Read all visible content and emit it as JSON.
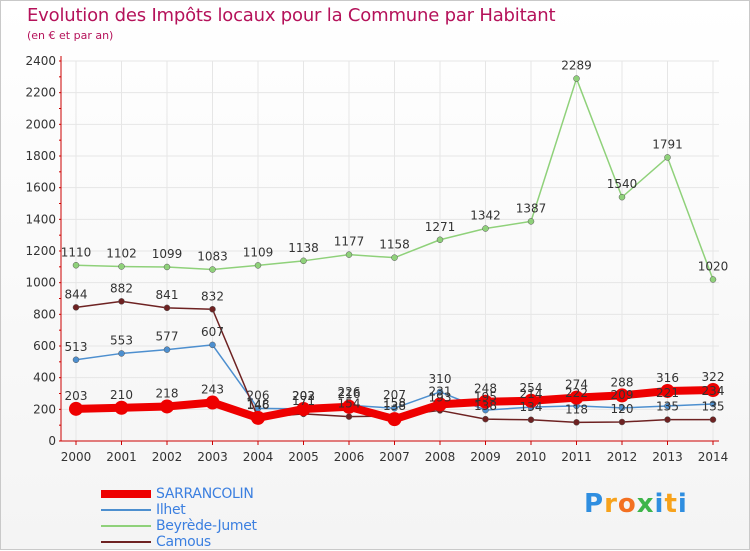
{
  "header": {
    "title": "Evolution des Impôts locaux pour la Commune par Habitant",
    "subtitle": "(en € et par an)"
  },
  "logo": {
    "text": "Proxiti",
    "letters": [
      "P",
      "r",
      "o",
      "x",
      "i",
      "t",
      "i"
    ],
    "colors": [
      "#2f8ee0",
      "#f7a21b",
      "#f37021",
      "#3db54a",
      "#2f8ee0",
      "#f7a21b",
      "#2f8ee0"
    ]
  },
  "chart_data": {
    "type": "line",
    "title": "Evolution des Impôts locaux pour la Commune par Habitant",
    "subtitle": "(en € et par an)",
    "xlabel": "",
    "ylabel": "",
    "ylim": [
      0,
      2400
    ],
    "yticks": [
      0,
      200,
      400,
      600,
      800,
      1000,
      1200,
      1400,
      1600,
      1800,
      2000,
      2200,
      2400
    ],
    "categories": [
      "2000",
      "2001",
      "2002",
      "2003",
      "2004",
      "2005",
      "2006",
      "2007",
      "2008",
      "2009",
      "2010",
      "2011",
      "2012",
      "2013",
      "2014"
    ],
    "grid": true,
    "legend_position": "bottom-left",
    "series": [
      {
        "name": "SARRANCOLIN",
        "color": "#ee0000",
        "emphasis": true,
        "values": [
          203,
          210,
          218,
          243,
          146,
          202,
          216,
          138,
          231,
          248,
          254,
          274,
          288,
          316,
          322
        ],
        "labels": [
          "203",
          "210",
          "218",
          "243",
          "146",
          "202",
          "216",
          "138",
          "231",
          "248",
          "254",
          "274",
          "288",
          "316",
          "322"
        ]
      },
      {
        "name": "Ilhet",
        "color": "#4d8fcf",
        "values": [
          513,
          553,
          577,
          607,
          206,
          203,
          226,
          207,
          310,
          195,
          214,
          222,
          209,
          221,
          234
        ],
        "labels": [
          "513",
          "553",
          "577",
          "607",
          "206",
          "203",
          "226",
          "207",
          "310",
          "195",
          "214",
          "222",
          "209",
          "221",
          "234"
        ]
      },
      {
        "name": "Beyrède-Jumet",
        "color": "#8fd17a",
        "values": [
          1110,
          1102,
          1099,
          1083,
          1109,
          1138,
          1177,
          1158,
          1271,
          1342,
          1387,
          2289,
          1540,
          1791,
          1020
        ],
        "labels": [
          "1110",
          "1102",
          "1099",
          "1083",
          "1109",
          "1138",
          "1177",
          "1158",
          "1271",
          "1342",
          "1387",
          "2289",
          "1540",
          "1791",
          "1020"
        ]
      },
      {
        "name": "Camous",
        "color": "#6e2222",
        "values": [
          844,
          882,
          841,
          832,
          148,
          171,
          154,
          158,
          193,
          138,
          134,
          118,
          120,
          135,
          135
        ],
        "labels": [
          "844",
          "882",
          "841",
          "832",
          "148",
          "171",
          "154",
          "158",
          "193",
          "138",
          "134",
          "118",
          "120",
          "135",
          "135"
        ]
      }
    ]
  }
}
